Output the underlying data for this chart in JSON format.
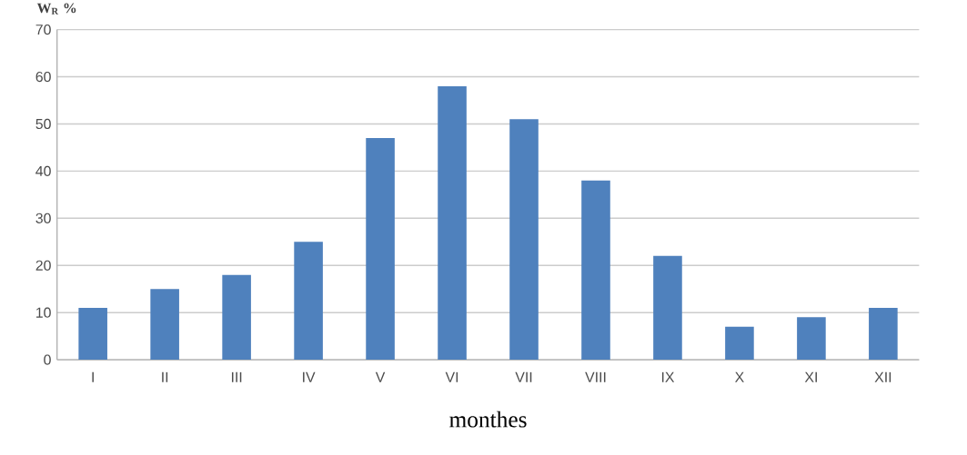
{
  "chart_data": {
    "type": "bar",
    "ylabel": "W$_{R}$ %",
    "xlabel": "monthes",
    "categories": [
      "I",
      "II",
      "III",
      "IV",
      "V",
      "VI",
      "VII",
      "VIII",
      "IX",
      "X",
      "XI",
      "XII"
    ],
    "values": [
      11,
      15,
      18,
      25,
      47,
      58,
      51,
      38,
      22,
      7,
      9,
      11
    ],
    "color": "#4f81bd",
    "ylim": [
      0,
      70
    ],
    "yticks": [
      0,
      10,
      20,
      30,
      40,
      50,
      60,
      70
    ],
    "grid": "y"
  }
}
